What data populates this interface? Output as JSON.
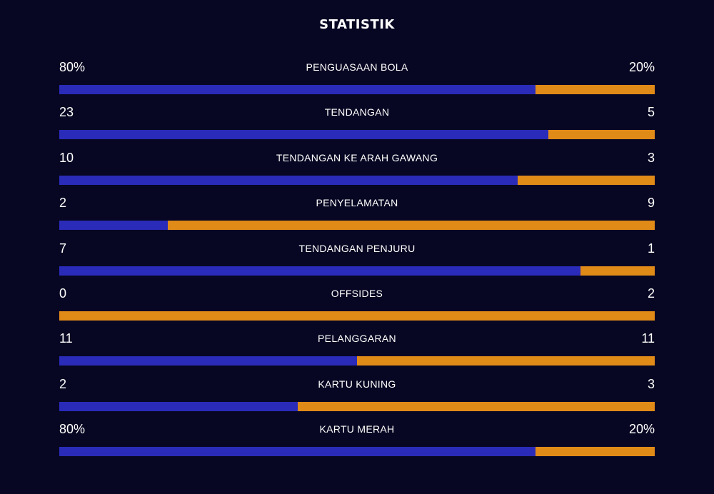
{
  "title": "STATISTIK",
  "colors": {
    "background": "#070723",
    "home": "#2a2bb8",
    "away": "#e08a18"
  },
  "stats": [
    {
      "label": "PENGUASAAN BOLA",
      "home": "80%",
      "away": "20%",
      "home_share": 0.8
    },
    {
      "label": "TENDANGAN",
      "home": "23",
      "away": "5",
      "home_share": 0.8214
    },
    {
      "label": "TENDANGAN KE ARAH GAWANG",
      "home": "10",
      "away": "3",
      "home_share": 0.7692
    },
    {
      "label": "PENYELAMATAN",
      "home": "2",
      "away": "9",
      "home_share": 0.1818
    },
    {
      "label": "TENDANGAN PENJURU",
      "home": "7",
      "away": "1",
      "home_share": 0.875
    },
    {
      "label": "OFFSIDES",
      "home": "0",
      "away": "2",
      "home_share": 0.0
    },
    {
      "label": "PELANGGARAN",
      "home": "11",
      "away": "11",
      "home_share": 0.5
    },
    {
      "label": "KARTU KUNING",
      "home": "2",
      "away": "3",
      "home_share": 0.4
    },
    {
      "label": "KARTU MERAH",
      "home": "80%",
      "away": "20%",
      "home_share": 0.8
    }
  ]
}
